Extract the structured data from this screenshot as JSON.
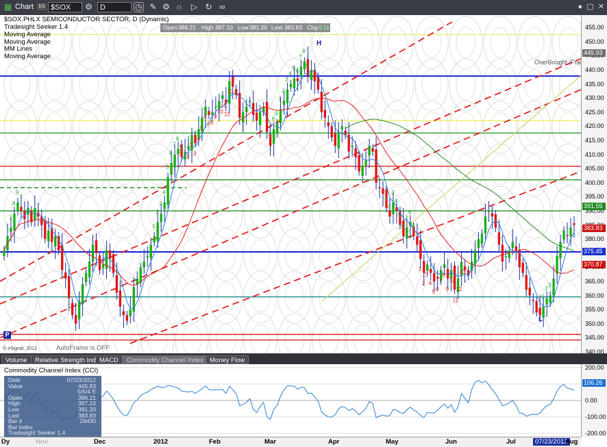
{
  "toolbar": {
    "title": "Chart",
    "link_badge": "1/1",
    "symbol": "$SOX",
    "interval": "D"
  },
  "price_pane": {
    "header": "$SOX.PHLX SEMICONDUCTOR SECTOR, D (Dynamic)",
    "studies": [
      "Tradesight Seeker 1.4",
      "Moving Average",
      "Moving Average",
      "MM Lines",
      "Moving Average"
    ],
    "ohlc": {
      "open_label": "Open",
      "open": "386.21",
      "high_label": "High",
      "high": "387.10",
      "low_label": "Low",
      "low": "381.20",
      "last_label": "Last",
      "last": "383.83",
      "chg_label": "Chg",
      "chg": "0.11"
    },
    "overbought_label": "OverBought (Fram",
    "autoframe": "AutoFrame is OFF",
    "copyright": "© eSignal, 2012",
    "period_marker": "P",
    "high_marker": "H",
    "low_marker": "L",
    "price_ticks": [
      "455.00",
      "450.00",
      "445.00",
      "440.00",
      "435.00",
      "430.00",
      "425.00",
      "420.00",
      "415.00",
      "410.00",
      "405.00",
      "400.00",
      "395.00",
      "390.00",
      "385.00",
      "380.00",
      "375.00",
      "370.00",
      "365.00",
      "360.00",
      "355.00",
      "350.00",
      "345.00",
      "340.00"
    ],
    "badges": [
      {
        "label": "445.93",
        "value": 445.93,
        "color": "#6e6e6e"
      },
      {
        "label": "391.55",
        "value": 391.55,
        "color": "#1f8a1f"
      },
      {
        "label": "383.83",
        "value": 383.83,
        "color": "#cc1111"
      },
      {
        "label": "375.45",
        "value": 375.45,
        "color": "#1a33cc"
      },
      {
        "label": "370.87",
        "value": 370.87,
        "color": "#cc1111"
      }
    ],
    "seeker_labels_green": [
      "7",
      "8",
      "9",
      "1",
      "2",
      "3",
      "4",
      "5",
      "6",
      "7",
      "8",
      "9",
      "7",
      "8",
      "9",
      "1",
      "2",
      "3",
      "4",
      "5",
      "6",
      "7",
      "8",
      "9",
      "1",
      "2",
      "3",
      "4",
      "5",
      "6",
      "7",
      "8",
      "9",
      "1",
      "2",
      "3"
    ],
    "seeker_labels_red": [
      "1",
      "2",
      "3",
      "4",
      "5",
      "6",
      "7",
      "8",
      "9",
      "10",
      "11",
      "12",
      "13",
      "1",
      "2",
      "3",
      "4",
      "5",
      "6",
      "7",
      "8",
      "9",
      "10",
      "11",
      "12",
      "13"
    ]
  },
  "tabs": [
    "Volume",
    "Relative Strength Index",
    "MACD",
    "Commodity Channel Index (CCI)",
    "Money Flow"
  ],
  "cci_pane": {
    "title": "Commodity Channel Index (CCI)",
    "ticks": [
      "200.00",
      "100.00",
      "0.00",
      "-100.00",
      "-200.00"
    ],
    "current_badge": "106.26",
    "current_value": 106.26
  },
  "data_window": {
    "rows": [
      {
        "label": "Date",
        "value": "07/23/2012"
      },
      {
        "label": "Value",
        "value": "445.93"
      },
      {
        "label": "",
        "value": "5/5/4 E"
      },
      {
        "label": "Open",
        "value": "386.21"
      },
      {
        "label": "High",
        "value": "387.10"
      },
      {
        "label": "Low",
        "value": "381.20"
      },
      {
        "label": "Last",
        "value": "383.83"
      },
      {
        "label": "Bar #",
        "value": "29430"
      },
      {
        "label": "Bar index",
        "value": ""
      },
      {
        "label": "Tradesight Seeker 1.4",
        "value": ""
      }
    ]
  },
  "time_axis": {
    "labels": [
      "Dec",
      "2012",
      "Feb",
      "Mar",
      "Apr",
      "May",
      "Jun",
      "Jul",
      "07/23/2012",
      "Aug"
    ],
    "left_label": "Dy",
    "nov_label": "Nov"
  },
  "chart_data": {
    "type": "candlestick",
    "title": "$SOX.PHLX SEMICONDUCTOR SECTOR, D (Dynamic)",
    "ylim": [
      338,
      457
    ],
    "x_start": "2011-11-01",
    "x_end": "2012-08-05",
    "last_close": 383.83,
    "horizontal_lines": [
      {
        "value": 452.5,
        "color": "#f2ef6a"
      },
      {
        "value": 437.8,
        "color": "#1a22d6"
      },
      {
        "value": 422.0,
        "color": "#f2ef6a"
      },
      {
        "value": 417.6,
        "color": "#2f9a2f"
      },
      {
        "value": 405.8,
        "color": "#d82020"
      },
      {
        "value": 401.0,
        "color": "#2a8c2a"
      },
      {
        "value": 390.0,
        "color": "#2a8c2a"
      },
      {
        "value": 375.45,
        "color": "#1a22d6"
      },
      {
        "value": 359.5,
        "color": "#1a8a8a"
      },
      {
        "value": 346.2,
        "color": "#d82020"
      },
      {
        "value": 344.2,
        "color": "#d82020"
      }
    ],
    "closes": [
      376,
      381,
      384,
      389,
      393,
      390,
      387,
      391,
      386,
      391,
      388,
      385,
      380,
      383,
      379,
      381,
      376,
      369,
      366,
      359,
      353,
      350,
      358,
      364,
      368,
      372,
      378,
      375,
      369,
      371,
      376,
      373,
      368,
      361,
      356,
      353,
      351,
      355,
      363,
      366,
      370,
      372,
      374,
      378,
      381,
      386,
      389,
      393,
      402,
      407,
      410,
      412,
      409,
      411,
      413,
      417,
      414,
      419,
      423,
      427,
      424,
      425,
      427,
      429,
      431,
      428,
      436,
      434,
      431,
      423,
      425,
      427,
      429,
      424,
      422,
      425,
      427,
      418,
      413,
      419,
      421,
      426,
      429,
      433,
      435,
      437,
      436,
      441,
      443,
      438,
      440,
      436,
      433,
      425,
      423,
      420,
      416,
      413,
      418,
      420,
      417,
      411,
      413,
      409,
      404,
      406,
      408,
      413,
      411,
      400,
      398,
      396,
      391,
      388,
      393,
      390,
      385,
      381,
      384,
      386,
      381,
      378,
      373,
      368,
      371,
      368,
      365,
      366,
      369,
      371,
      366,
      369,
      362,
      366,
      372,
      369,
      367,
      372,
      376,
      380,
      382,
      388,
      390,
      388,
      384,
      378,
      372,
      374,
      376,
      379,
      376,
      370,
      368,
      362,
      360,
      358,
      354,
      353,
      356,
      359,
      360,
      366,
      374,
      379,
      383,
      381,
      384,
      385
    ]
  }
}
